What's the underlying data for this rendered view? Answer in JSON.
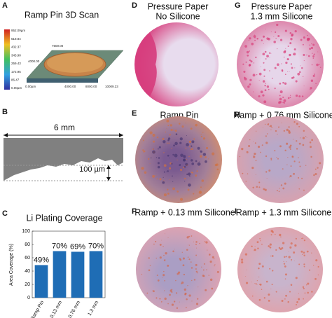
{
  "figure": {
    "panel_letters": [
      "A",
      "B",
      "C",
      "D",
      "E",
      "F",
      "G",
      "H",
      "I"
    ],
    "a": {
      "title": "Ramp Pin 3D Scan",
      "colorbar": [
        "952.09µm",
        "518.84",
        "432.37",
        "345.90",
        "259.43",
        "172.95",
        "86.47",
        "0.00µm"
      ],
      "axis": [
        "0.00µm",
        "4000.00",
        "8000.00",
        "10009.23",
        "4000.00",
        "7500.00"
      ]
    },
    "b": {
      "width": "6 mm",
      "depth": "100 µm"
    },
    "photos": [
      {
        "title": [
          "Pressure Paper",
          "No Silicone"
        ]
      },
      {
        "title": [
          "Ramp Pin"
        ]
      },
      {
        "title": [
          "Ramp + 0.13 mm Silicone"
        ]
      },
      {
        "title": [
          "Pressure Paper",
          "1.3 mm Silicone"
        ]
      },
      {
        "title": [
          "Ramp + 0.76 mm Silicone"
        ]
      },
      {
        "title": [
          "Ramp + 1.3 mm Silicone"
        ]
      }
    ]
  },
  "chart_data": {
    "type": "bar",
    "title": "Li Plating Coverage",
    "y_label": "Area Coverage (%)",
    "categories": [
      "Ramp Pin",
      "0.13 mm",
      "0.76 mm",
      "1.3 mm"
    ],
    "values": [
      49,
      70,
      69,
      70
    ],
    "value_labels": [
      "49%",
      "70%",
      "69%",
      "70%"
    ],
    "color": "#1f6db5",
    "ylim": [
      0,
      100
    ],
    "yticks": [
      0,
      20,
      40,
      60,
      80,
      100
    ]
  }
}
